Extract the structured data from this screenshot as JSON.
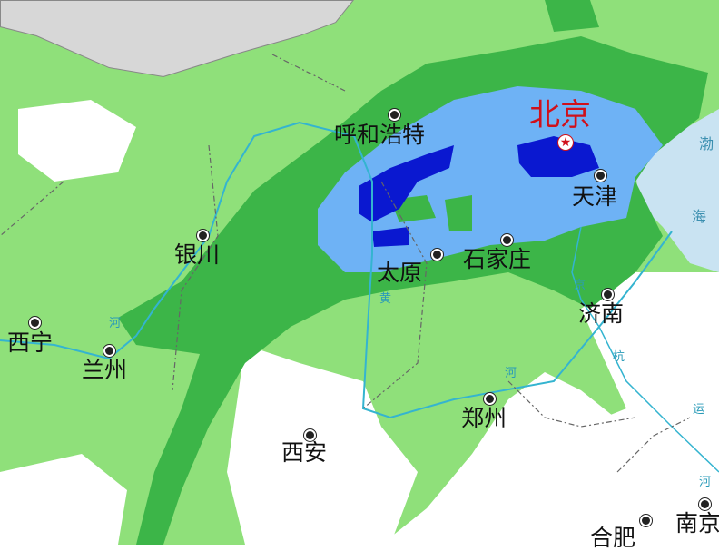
{
  "colors": {
    "light_rain": "#8fe07a",
    "moderate_rain": "#3cb548",
    "heavy_rain": "#6eb2f5",
    "storm": "#0a18d0",
    "sea": "#c9e3f2",
    "river": "#34b4d0",
    "capital": "#d0101a",
    "outside": "#d7d7d7"
  },
  "capital": {
    "name": "北京",
    "icon": "star-icon"
  },
  "cities": [
    {
      "name": "呼和浩特"
    },
    {
      "name": "天津"
    },
    {
      "name": "石家庄"
    },
    {
      "name": "太原"
    },
    {
      "name": "银川"
    },
    {
      "name": "济南"
    },
    {
      "name": "西宁"
    },
    {
      "name": "兰州"
    },
    {
      "name": "郑州"
    },
    {
      "name": "西安"
    },
    {
      "name": "合肥"
    },
    {
      "name": "南京"
    }
  ],
  "rivers": {
    "huanghe": [
      "黄",
      "河",
      "河"
    ],
    "grand_canal": [
      "京",
      "杭",
      "运",
      "河"
    ]
  },
  "sea": [
    "渤",
    "海"
  ]
}
